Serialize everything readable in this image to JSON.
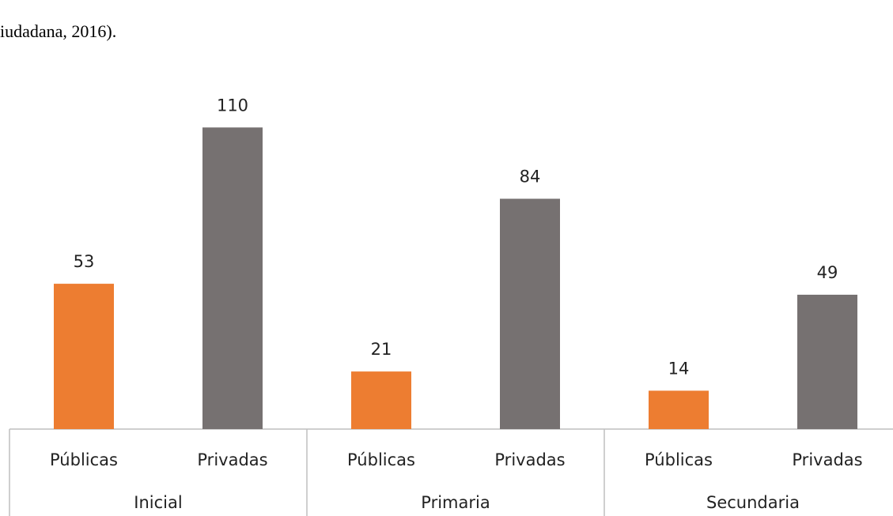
{
  "text_above": "iudadana, 2016).",
  "chart_data": {
    "type": "bar",
    "colors": [
      "#ed7d31",
      "#767171"
    ],
    "groups": [
      {
        "name": "Inicial",
        "categories": [
          "Públicas",
          "Privadas"
        ],
        "values": [
          53,
          110
        ]
      },
      {
        "name": "Primaria",
        "categories": [
          "Públicas",
          "Privadas"
        ],
        "values": [
          21,
          84
        ]
      },
      {
        "name": "Secundaria",
        "categories": [
          "Públicas",
          "Privadas"
        ],
        "values": [
          14,
          49
        ]
      }
    ]
  }
}
